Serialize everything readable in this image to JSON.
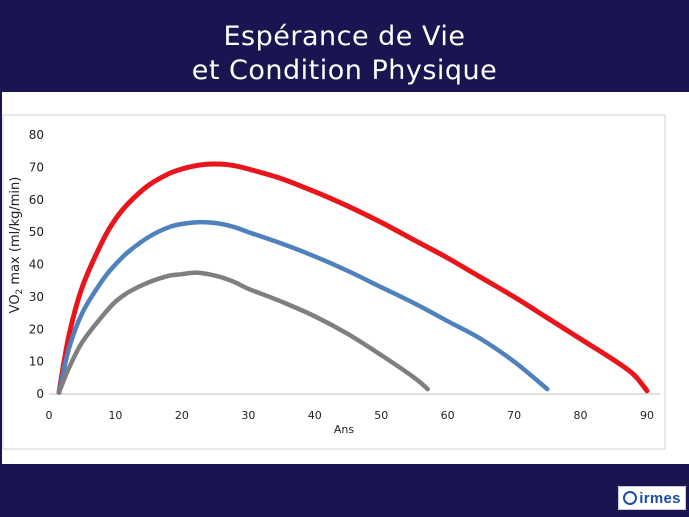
{
  "slide": {
    "title_line1": "Espérance de Vie",
    "title_line2": "et Condition Physique",
    "logo_text": "irmes"
  },
  "chart_data": {
    "type": "line",
    "title": "",
    "xlabel": "Ans",
    "ylabel_prefix": "VO",
    "ylabel_sub": "2",
    "ylabel_suffix": " max (ml/kg/min)",
    "xlim": [
      0,
      90
    ],
    "ylim": [
      0,
      80
    ],
    "x_ticks": [
      "0",
      "10",
      "20",
      "30",
      "40",
      "50",
      "60",
      "70",
      "80",
      "90"
    ],
    "y_ticks": [
      "0",
      "10",
      "20",
      "30",
      "40",
      "50",
      "60",
      "70",
      "80"
    ],
    "grid": false,
    "legend": "none",
    "series": [
      {
        "color": "#e8161b",
        "x": [
          1.5,
          3,
          5,
          8,
          10,
          12,
          15,
          18,
          20,
          22,
          24,
          26,
          28,
          30,
          35,
          40,
          45,
          50,
          55,
          60,
          65,
          70,
          75,
          80,
          85,
          88,
          90
        ],
        "y": [
          0.5,
          18,
          33,
          47,
          54,
          59,
          64.5,
          68,
          69.5,
          70.5,
          71,
          71,
          70.5,
          69.5,
          66.5,
          62.5,
          58,
          53,
          47.5,
          42,
          36,
          30,
          23.5,
          17,
          10.5,
          6,
          1
        ]
      },
      {
        "color": "#4f81bd",
        "x": [
          1.5,
          3,
          5,
          8,
          10,
          12,
          15,
          18,
          20,
          22,
          24,
          26,
          28,
          30,
          35,
          40,
          45,
          50,
          55,
          60,
          65,
          70,
          75
        ],
        "y": [
          0.5,
          14,
          25,
          35,
          40,
          44,
          48.5,
          51.5,
          52.5,
          53,
          53,
          52.5,
          51.5,
          50,
          46.5,
          42.5,
          38,
          33,
          28,
          22.5,
          17,
          10,
          1.5
        ]
      },
      {
        "color": "#7f7f7f",
        "x": [
          1.5,
          3,
          5,
          8,
          10,
          12,
          15,
          18,
          20,
          22,
          24,
          26,
          28,
          30,
          35,
          40,
          45,
          50,
          55,
          57
        ],
        "y": [
          0.5,
          8,
          16,
          24,
          28.5,
          31.5,
          34.5,
          36.5,
          37,
          37.5,
          37,
          36,
          34.5,
          32.5,
          28.5,
          24,
          18.5,
          12,
          5,
          1.5
        ]
      }
    ]
  }
}
